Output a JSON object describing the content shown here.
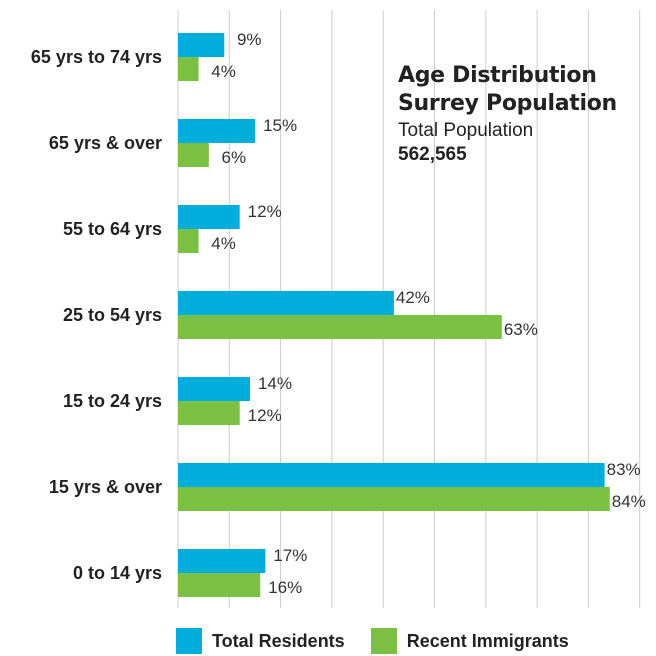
{
  "chart_data": {
    "type": "bar",
    "orientation": "horizontal",
    "title": "Age Distribution",
    "subtitle_line2": "Surrey Population",
    "note_label": "Total Population",
    "note_value": "562,565",
    "categories": [
      "65 yrs to 74 yrs",
      "65 yrs & over",
      "55 to 64 yrs",
      "25 to 54 yrs",
      "15 to 24 yrs",
      "15 yrs & over",
      "0 to 14 yrs"
    ],
    "series": [
      {
        "name": "Total Residents",
        "color": "#00aedb",
        "values": [
          9,
          15,
          12,
          42,
          14,
          83,
          17
        ]
      },
      {
        "name": "Recent Immigrants",
        "color": "#7ac143",
        "values": [
          4,
          6,
          4,
          63,
          12,
          84,
          16
        ]
      }
    ],
    "value_suffix": "%",
    "xlim": [
      0,
      84
    ],
    "grid": true,
    "legend_position": "bottom"
  }
}
